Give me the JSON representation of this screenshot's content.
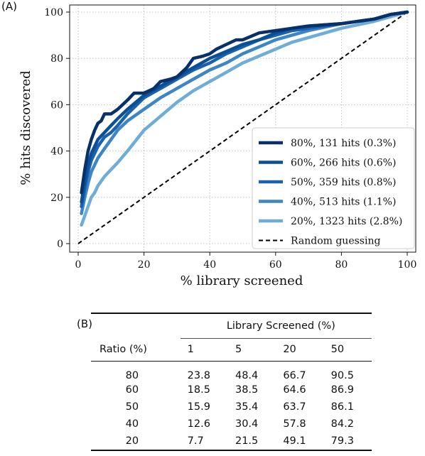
{
  "chart_data": [
    {
      "panel": "(A)",
      "type": "line",
      "xlabel": "% library screened",
      "ylabel": "% hits discovered",
      "xlim": [
        0,
        100
      ],
      "ylim": [
        0,
        100
      ],
      "xticks": [
        "0",
        "20",
        "40",
        "60",
        "80",
        "100"
      ],
      "yticks": [
        "0",
        "20",
        "40",
        "60",
        "80",
        "100"
      ],
      "grid": true,
      "legend_position": "lower-right",
      "series": [
        {
          "name": "80%, 131 hits (0.3%)",
          "color": "#08306b",
          "x": [
            1,
            2,
            3,
            4,
            5,
            6,
            7,
            8,
            10,
            12,
            15,
            17,
            20,
            23,
            25,
            28,
            30,
            33,
            35,
            38,
            40,
            42,
            45,
            48,
            50,
            55,
            60,
            65,
            70,
            80,
            90,
            95,
            100
          ],
          "y": [
            22,
            32,
            40,
            45,
            49,
            52,
            53,
            56,
            56,
            58,
            62,
            65,
            65,
            67,
            70,
            71,
            72,
            76,
            80,
            81,
            82,
            84,
            86,
            88,
            88,
            91,
            92,
            93,
            94,
            95,
            97,
            99,
            100
          ]
        },
        {
          "name": "60%, 266 hits (0.6%)",
          "color": "#0b4f96",
          "x": [
            1,
            2,
            3,
            4,
            5,
            6,
            8,
            10,
            12,
            15,
            20,
            25,
            30,
            35,
            40,
            45,
            50,
            55,
            60,
            65,
            70,
            80,
            90,
            95,
            100
          ],
          "y": [
            18,
            27,
            34,
            39,
            42,
            45,
            48,
            51,
            54,
            58,
            64,
            68,
            72,
            76,
            80,
            83,
            86,
            88,
            91,
            93,
            94,
            95,
            97,
            99,
            100
          ]
        },
        {
          "name": "50%, 359 hits (0.8%)",
          "color": "#1a62ab",
          "x": [
            1,
            2,
            3,
            4,
            5,
            6,
            8,
            10,
            12,
            15,
            20,
            25,
            30,
            35,
            40,
            45,
            50,
            55,
            60,
            65,
            70,
            80,
            90,
            95,
            100
          ],
          "y": [
            16,
            24,
            31,
            36,
            39,
            42,
            46,
            48,
            51,
            56,
            63,
            67,
            71,
            75,
            78,
            82,
            85,
            88,
            90,
            92,
            93,
            95,
            97,
            99,
            100
          ]
        },
        {
          "name": "40%, 513 hits (1.1%)",
          "color": "#3d85c4",
          "x": [
            1,
            2,
            3,
            4,
            5,
            6,
            8,
            10,
            12,
            15,
            20,
            25,
            30,
            35,
            40,
            45,
            50,
            55,
            60,
            65,
            70,
            80,
            90,
            95,
            100
          ],
          "y": [
            13,
            20,
            26,
            31,
            34,
            37,
            41,
            45,
            49,
            53,
            58,
            63,
            67,
            71,
            75,
            78,
            82,
            85,
            88,
            90,
            92,
            95,
            97,
            99,
            100
          ]
        },
        {
          "name": "20%, 1323 hits (2.8%)",
          "color": "#6fadd8",
          "x": [
            1,
            2,
            3,
            4,
            5,
            6,
            8,
            10,
            12,
            15,
            20,
            25,
            30,
            35,
            40,
            45,
            50,
            55,
            60,
            65,
            70,
            80,
            90,
            95,
            100
          ],
          "y": [
            8,
            12,
            16,
            20,
            22,
            25,
            29,
            32,
            35,
            40,
            49,
            55,
            61,
            66,
            70,
            74,
            78,
            81,
            84,
            87,
            89,
            93,
            96,
            98,
            100
          ]
        },
        {
          "name": "Random guessing",
          "color": "#000000",
          "dashed": true,
          "x": [
            0,
            100
          ],
          "y": [
            0,
            100
          ]
        }
      ]
    },
    {
      "panel": "(B)",
      "type": "table",
      "group_header": "Library Screened (%)",
      "row_header": "Ratio (%)",
      "columns": [
        "1",
        "5",
        "20",
        "50"
      ],
      "rows": [
        {
          "ratio": "80",
          "values": [
            "23.8",
            "48.4",
            "66.7",
            "90.5"
          ]
        },
        {
          "ratio": "60",
          "values": [
            "18.5",
            "38.5",
            "64.6",
            "86.9"
          ]
        },
        {
          "ratio": "50",
          "values": [
            "15.9",
            "35.4",
            "63.7",
            "86.1"
          ]
        },
        {
          "ratio": "40",
          "values": [
            "12.6",
            "30.4",
            "57.8",
            "84.2"
          ]
        },
        {
          "ratio": "20",
          "values": [
            "7.7",
            "21.5",
            "49.1",
            "79.3"
          ]
        }
      ]
    }
  ]
}
